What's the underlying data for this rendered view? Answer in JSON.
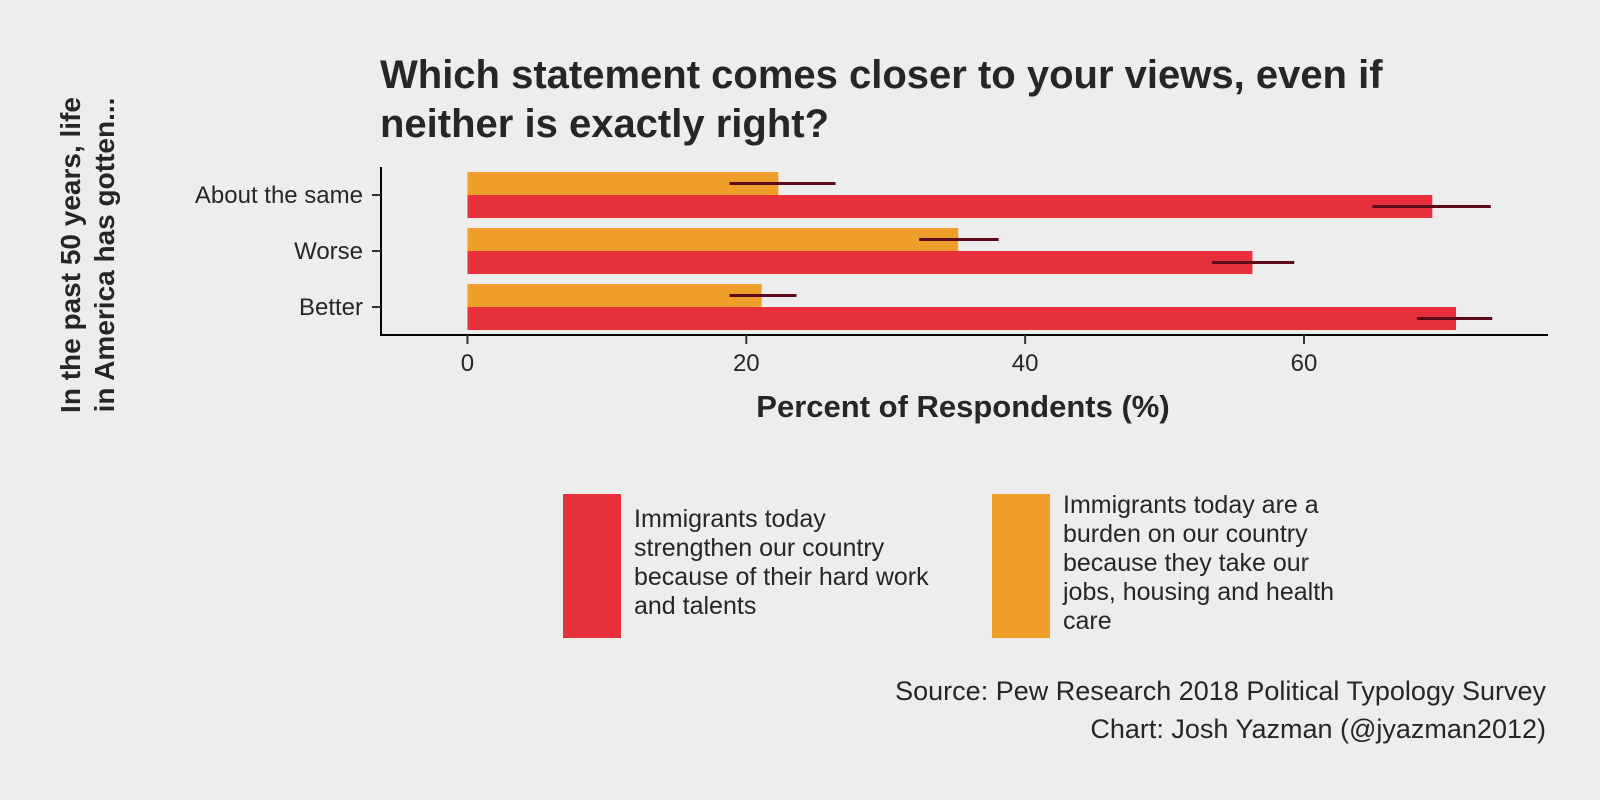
{
  "colors": {
    "strengthen": "#e8303c",
    "burden": "#f09e2a",
    "errorbar": "#5a0a1a",
    "background": "#ededed"
  },
  "chart_data": {
    "type": "bar",
    "orientation": "horizontal",
    "title_lines": [
      "Which statement comes closer to your views, even if",
      "neither is exactly right?"
    ],
    "ylabel_lines": [
      "In the past 50 years, life",
      "in America has gotten..."
    ],
    "xlabel": "Percent of Respondents (%)",
    "categories": [
      "About the same",
      "Worse",
      "Better"
    ],
    "xlim": [
      -6.2,
      77.5
    ],
    "xticks": [
      0,
      20,
      40,
      60
    ],
    "grid": false,
    "legend_position": "bottom",
    "series": [
      {
        "key": "strengthen",
        "name_lines": [
          "Immigrants today",
          "strengthen our country",
          "because of their hard work",
          "and talents"
        ],
        "values": [
          69.2,
          56.3,
          70.9
        ],
        "error_low": [
          64.9,
          53.4,
          68.1
        ],
        "error_high": [
          73.4,
          59.3,
          73.5
        ]
      },
      {
        "key": "burden",
        "name_lines": [
          "Immigrants today are a",
          "burden on our country",
          "because they take our",
          "jobs, housing and health",
          "care"
        ],
        "values": [
          22.3,
          35.2,
          21.1
        ],
        "error_low": [
          18.8,
          32.4,
          18.8
        ],
        "error_high": [
          26.4,
          38.1,
          23.6
        ]
      }
    ],
    "caption_lines": [
      "Source: Pew Research 2018 Political Typology Survey",
      "Chart: Josh Yazman (@jyazman2012)"
    ]
  }
}
